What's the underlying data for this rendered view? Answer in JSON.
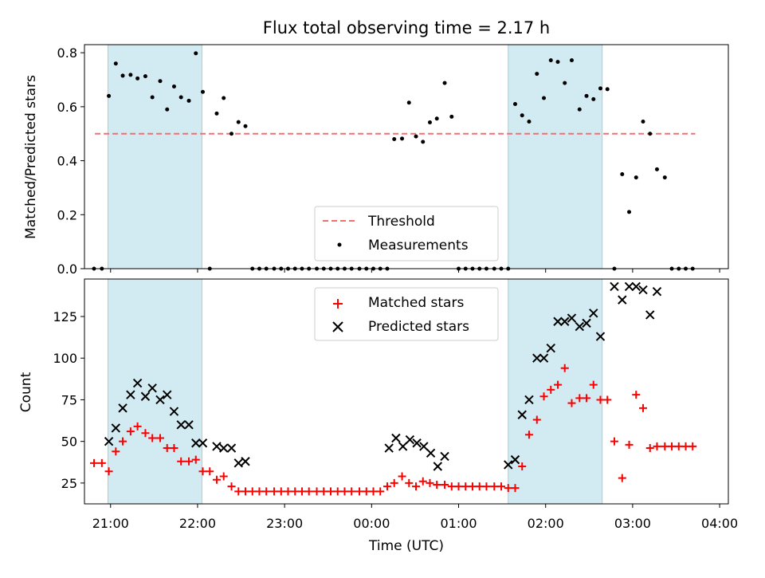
{
  "chart_data": {
    "title": "Flux total observing time = 2.17 h",
    "xlabel": "Time (UTC)",
    "x_unit": "hours UTC, continuous across midnight (24 = 00:00 next day)",
    "xlim": [
      20.7,
      28.1
    ],
    "x_ticks": [
      {
        "value": 21,
        "label": "21:00"
      },
      {
        "value": 22,
        "label": "22:00"
      },
      {
        "value": 23,
        "label": "23:00"
      },
      {
        "value": 24,
        "label": "00:00"
      },
      {
        "value": 25,
        "label": "01:00"
      },
      {
        "value": 26,
        "label": "02:00"
      },
      {
        "value": 27,
        "label": "03:00"
      },
      {
        "value": 28,
        "label": "04:00"
      }
    ],
    "shaded_intervals": [
      [
        20.97,
        22.05
      ],
      [
        25.57,
        26.65
      ]
    ],
    "shade_color": "#add8e6",
    "panels": [
      {
        "type": "scatter",
        "ylabel": "Matched/Predicted stars",
        "ylim": [
          0,
          0.83
        ],
        "y_ticks": [
          {
            "value": 0.0,
            "label": "0.0"
          },
          {
            "value": 0.2,
            "label": "0.2"
          },
          {
            "value": 0.4,
            "label": "0.4"
          },
          {
            "value": 0.6,
            "label": "0.6"
          },
          {
            "value": 0.8,
            "label": "0.8"
          }
        ],
        "threshold": {
          "name": "Threshold",
          "value": 0.5,
          "x_range": [
            20.82,
            27.72
          ],
          "color": "#f07070"
        },
        "series": [
          {
            "name": "Measurements",
            "marker": "dot",
            "color": "#000000",
            "x": [
              20.81,
              20.9,
              20.98,
              21.06,
              21.14,
              21.23,
              21.31,
              21.4,
              21.48,
              21.57,
              21.65,
              21.73,
              21.81,
              21.9,
              21.98,
              22.06,
              22.14,
              22.22,
              22.3,
              22.39,
              22.47,
              22.55,
              22.63,
              22.71,
              22.79,
              22.88,
              22.96,
              23.04,
              23.12,
              23.2,
              23.28,
              23.37,
              23.45,
              23.53,
              23.61,
              23.69,
              23.77,
              23.86,
              23.94,
              24.02,
              24.1,
              24.18,
              24.26,
              24.35,
              24.43,
              24.51,
              24.59,
              24.67,
              24.75,
              24.84,
              24.92,
              25.0,
              25.08,
              25.16,
              25.24,
              25.32,
              25.41,
              25.49,
              25.57,
              25.65,
              25.73,
              25.81,
              25.9,
              25.98,
              26.06,
              26.14,
              26.22,
              26.3,
              26.39,
              26.47,
              26.55,
              26.63,
              26.71,
              26.79,
              26.88,
              26.96,
              27.04,
              27.12,
              27.2,
              27.28,
              27.37,
              27.45,
              27.53,
              27.61,
              27.69
            ],
            "y": [
              0,
              0,
              0.64,
              0.76,
              0.715,
              0.718,
              0.705,
              0.713,
              0.635,
              0.695,
              0.59,
              0.675,
              0.635,
              0.622,
              0.798,
              0.655,
              0,
              0.575,
              0.632,
              0.5,
              0.543,
              0.528,
              0,
              0,
              0,
              0,
              0,
              0,
              0,
              0,
              0,
              0,
              0,
              0,
              0,
              0,
              0,
              0,
              0,
              0,
              0,
              0,
              0.48,
              0.482,
              0.615,
              0.49,
              0.47,
              0.542,
              0.556,
              0.688,
              0.563,
              0,
              0,
              0,
              0,
              0,
              0,
              0,
              0,
              0.61,
              0.568,
              0.545,
              0.722,
              0.632,
              0.772,
              0.766,
              0.688,
              0.772,
              0.59,
              0.64,
              0.628,
              0.668,
              0.665,
              0,
              0.35,
              0.21,
              0.338,
              0.545,
              0.5,
              0.368,
              0.338,
              0,
              0,
              0,
              0
            ]
          }
        ]
      },
      {
        "type": "scatter",
        "ylabel": "Count",
        "ylim": [
          12.5,
          147.5
        ],
        "y_ticks": [
          {
            "value": 25,
            "label": "25"
          },
          {
            "value": 50,
            "label": "50"
          },
          {
            "value": 75,
            "label": "75"
          },
          {
            "value": 100,
            "label": "100"
          },
          {
            "value": 125,
            "label": "125"
          }
        ],
        "series": [
          {
            "name": "Matched stars",
            "marker": "plus",
            "color": "#ff0000",
            "x": [
              20.81,
              20.9,
              20.98,
              21.06,
              21.14,
              21.23,
              21.31,
              21.4,
              21.48,
              21.57,
              21.65,
              21.73,
              21.81,
              21.9,
              21.98,
              22.06,
              22.14,
              22.22,
              22.3,
              22.39,
              22.47,
              22.55,
              22.63,
              22.71,
              22.79,
              22.88,
              22.96,
              23.04,
              23.12,
              23.2,
              23.28,
              23.37,
              23.45,
              23.53,
              23.61,
              23.69,
              23.77,
              23.86,
              23.94,
              24.02,
              24.1,
              24.18,
              24.26,
              24.35,
              24.43,
              24.51,
              24.59,
              24.67,
              24.75,
              24.84,
              24.92,
              25.0,
              25.08,
              25.16,
              25.24,
              25.32,
              25.41,
              25.49,
              25.57,
              25.65,
              25.73,
              25.81,
              25.9,
              25.98,
              26.06,
              26.14,
              26.22,
              26.3,
              26.39,
              26.47,
              26.55,
              26.63,
              26.71,
              26.79,
              26.88,
              26.96,
              27.04,
              27.12,
              27.2,
              27.28,
              27.37,
              27.45,
              27.53,
              27.61,
              27.69
            ],
            "y": [
              37,
              37,
              32,
              44,
              50,
              56,
              59,
              55,
              52,
              52,
              46,
              46,
              38,
              38,
              39,
              32,
              32,
              27,
              29,
              23,
              20,
              20,
              20,
              20,
              20,
              20,
              20,
              20,
              20,
              20,
              20,
              20,
              20,
              20,
              20,
              20,
              20,
              20,
              20,
              20,
              20,
              23,
              25,
              29,
              25,
              23,
              26,
              25,
              24,
              24,
              23,
              23,
              23,
              23,
              23,
              23,
              23,
              23,
              22,
              22,
              35,
              54,
              63,
              77,
              81,
              84,
              94,
              73,
              76,
              76,
              84,
              75,
              75,
              50,
              28,
              48,
              78,
              70,
              46,
              47,
              47,
              47,
              47,
              47,
              47
            ]
          },
          {
            "name": "Predicted stars",
            "marker": "x",
            "color": "#000000",
            "x": [
              20.98,
              21.06,
              21.14,
              21.23,
              21.31,
              21.4,
              21.48,
              21.57,
              21.65,
              21.73,
              21.81,
              21.9,
              21.98,
              22.06,
              22.22,
              22.3,
              22.39,
              22.47,
              22.55,
              24.2,
              24.28,
              24.36,
              24.44,
              24.52,
              24.6,
              24.68,
              24.76,
              24.84,
              25.57,
              25.65,
              25.73,
              25.81,
              25.9,
              25.98,
              26.06,
              26.14,
              26.22,
              26.3,
              26.39,
              26.47,
              26.55,
              26.63,
              26.79,
              26.88,
              26.96,
              27.04,
              27.12,
              27.2,
              27.28
            ],
            "y": [
              50,
              58,
              70,
              78,
              85,
              77,
              82,
              75,
              78,
              68,
              60,
              60,
              49,
              49,
              47,
              46,
              46,
              37,
              38,
              46,
              52,
              47,
              51,
              49,
              47,
              43,
              35,
              41,
              36,
              39,
              66,
              75,
              100,
              100,
              106,
              122,
              122,
              124,
              119,
              121,
              127,
              113,
              143,
              135,
              143,
              143,
              141,
              126,
              140
            ]
          }
        ]
      }
    ]
  }
}
